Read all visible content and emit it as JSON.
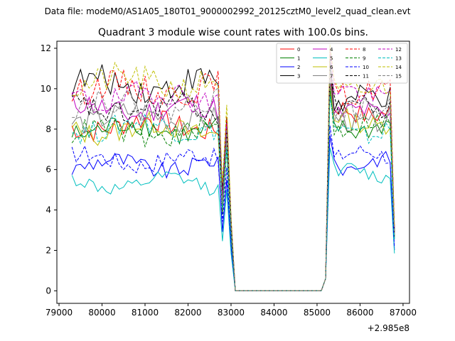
{
  "chart_data": {
    "type": "line",
    "suptitle": "Data file: modeM0/AS1A05_180T01_9000002992_20125cztM0_level2_quad_clean.evt",
    "title": "Quadrant 3 module wise count rates with 100.0s bins.",
    "xlabel": "",
    "ylabel": "",
    "x_offset_label": "+2.985e8",
    "xlim": [
      78950,
      87150
    ],
    "ylim": [
      -0.62,
      12.35
    ],
    "x_ticks": [
      79000,
      80000,
      81000,
      82000,
      83000,
      84000,
      85000,
      86000,
      87000
    ],
    "x_tick_labels": [
      "79000",
      "80000",
      "81000",
      "82000",
      "83000",
      "84000",
      "85000",
      "86000",
      "87000"
    ],
    "y_ticks": [
      0,
      2,
      4,
      6,
      8,
      10,
      12
    ],
    "y_tick_labels": [
      "0",
      "2",
      "4",
      "6",
      "8",
      "10",
      "12"
    ],
    "legend_position": "top-right",
    "segments": [
      {
        "label": "segment-1",
        "x_start": 79300,
        "x_end": 82700,
        "step": 100
      },
      {
        "label": "gap",
        "x_start": 82800,
        "x_end": 83000,
        "values_note": "dip then spike"
      },
      {
        "label": "zero",
        "x_start": 83100,
        "x_end": 85100
      },
      {
        "label": "segment-2",
        "x_start": 85300,
        "x_end": 86700,
        "step": 100
      }
    ],
    "series": [
      {
        "name": "0",
        "color": "#ff0000",
        "dash": false,
        "seg1_level": 8.2,
        "seg2_level": 8.9,
        "peak": 7.6
      },
      {
        "name": "1",
        "color": "#008000",
        "dash": false,
        "seg1_level": 8.0,
        "seg2_level": 8.1,
        "peak": 7.2
      },
      {
        "name": "2",
        "color": "#0000ff",
        "dash": false,
        "seg1_level": 6.2,
        "seg2_level": 6.3,
        "peak": 5.5
      },
      {
        "name": "3",
        "color": "#000000",
        "dash": false,
        "seg1_level": 10.2,
        "seg2_level": 9.4,
        "peak": 8.6
      },
      {
        "name": "4",
        "color": "#bf00bf",
        "dash": false,
        "seg1_level": 9.0,
        "seg2_level": 8.7,
        "peak": 7.8
      },
      {
        "name": "5",
        "color": "#00bfbf",
        "dash": false,
        "seg1_level": 5.3,
        "seg2_level": 5.8,
        "peak": 5.0
      },
      {
        "name": "6",
        "color": "#bfbf00",
        "dash": false,
        "seg1_level": 8.0,
        "seg2_level": 8.4,
        "peak": 7.3
      },
      {
        "name": "7",
        "color": "#808080",
        "dash": false,
        "seg1_level": 8.6,
        "seg2_level": 8.5,
        "peak": 7.6
      },
      {
        "name": "8",
        "color": "#ff0000",
        "dash": true,
        "seg1_level": 10.0,
        "seg2_level": 9.9,
        "peak": 8.6
      },
      {
        "name": "9",
        "color": "#008000",
        "dash": true,
        "seg1_level": 7.8,
        "seg2_level": 8.2,
        "peak": 7.0
      },
      {
        "name": "10",
        "color": "#0000ff",
        "dash": true,
        "seg1_level": 6.5,
        "seg2_level": 6.7,
        "peak": 6.1
      },
      {
        "name": "11",
        "color": "#000000",
        "dash": true,
        "seg1_level": 9.0,
        "seg2_level": 9.1,
        "peak": 8.0
      },
      {
        "name": "12",
        "color": "#bf00bf",
        "dash": true,
        "seg1_level": 9.6,
        "seg2_level": 9.8,
        "peak": 8.3
      },
      {
        "name": "13",
        "color": "#00bfbf",
        "dash": true,
        "seg1_level": 8.1,
        "seg2_level": 7.9,
        "peak": 7.1
      },
      {
        "name": "14",
        "color": "#bfbf00",
        "dash": true,
        "seg1_level": 10.3,
        "seg2_level": 10.0,
        "peak": 9.2
      },
      {
        "name": "15",
        "color": "#808080",
        "dash": true,
        "seg1_level": 9.2,
        "seg2_level": 8.9,
        "peak": 8.0
      }
    ]
  }
}
